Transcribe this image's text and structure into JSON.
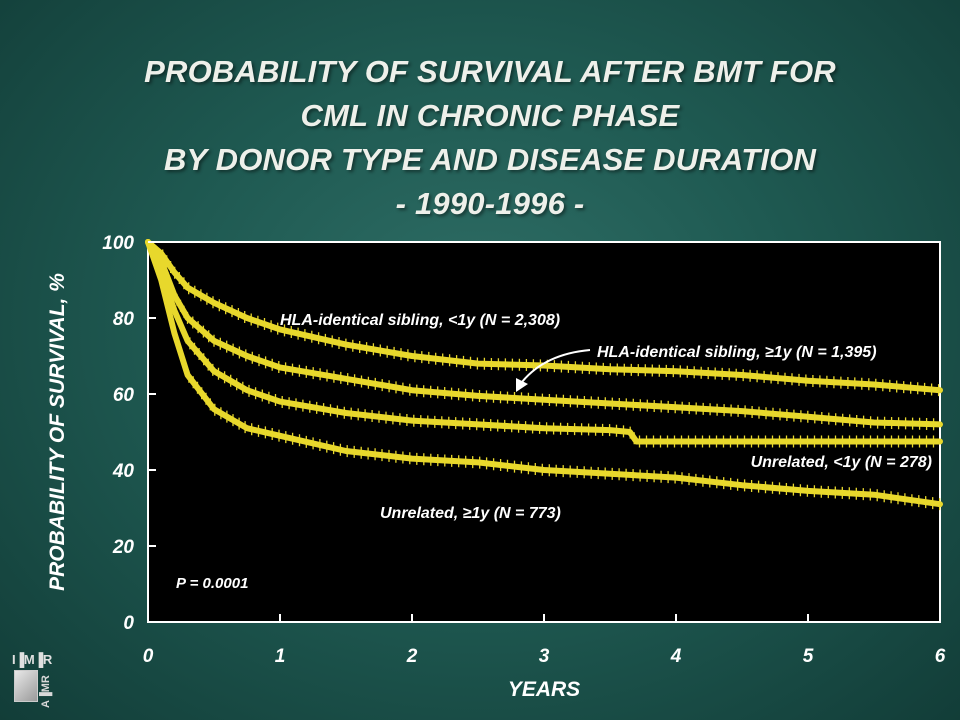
{
  "chart_data": {
    "type": "line",
    "title_lines": [
      "PROBABILITY OF SURVIVAL AFTER BMT FOR",
      "CML IN CHRONIC PHASE",
      "BY DONOR TYPE AND DISEASE DURATION",
      "- 1990-1996 -"
    ],
    "xlabel": "YEARS",
    "ylabel": "PROBABILITY OF SURVIVAL, %",
    "xlim": [
      0,
      6
    ],
    "ylim": [
      0,
      100
    ],
    "x_ticks": [
      "0",
      "1",
      "2",
      "3",
      "4",
      "5",
      "6"
    ],
    "y_ticks": [
      "0",
      "20",
      "40",
      "60",
      "80",
      "100"
    ],
    "grid": false,
    "annotation": "P = 0.0001",
    "series": [
      {
        "name": "HLA-identical sibling, <1y (N = 2,308)",
        "x": [
          0,
          0.1,
          0.2,
          0.3,
          0.5,
          0.75,
          1,
          1.5,
          2,
          2.5,
          3,
          3.5,
          4,
          4.5,
          5,
          5.5,
          6
        ],
        "y": [
          100,
          97,
          92,
          88,
          84,
          80,
          77,
          73,
          70,
          68,
          67.5,
          66.5,
          66,
          65,
          63.5,
          62.5,
          61
        ]
      },
      {
        "name": "HLA-identical sibling, ≥1y (N = 1,395)",
        "x": [
          0,
          0.1,
          0.2,
          0.3,
          0.5,
          0.75,
          1,
          1.5,
          2,
          2.5,
          3,
          3.5,
          4,
          4.5,
          5,
          5.5,
          6
        ],
        "y": [
          100,
          95,
          86,
          80,
          74,
          70,
          67,
          64,
          61,
          59.5,
          58.5,
          57.5,
          56.5,
          55.5,
          54,
          52.5,
          52
        ]
      },
      {
        "name": "Unrelated, <1y (N = 278)",
        "x": [
          0,
          0.1,
          0.2,
          0.3,
          0.5,
          0.75,
          1,
          1.5,
          2,
          2.5,
          3,
          3.5,
          3.65,
          3.7,
          4,
          4.5,
          5,
          5.5,
          6
        ],
        "y": [
          100,
          92,
          82,
          74,
          66,
          61,
          58,
          55,
          53,
          52,
          51,
          50.5,
          50,
          47.5,
          47.5,
          47.5,
          47.5,
          47.5,
          47.5
        ]
      },
      {
        "name": "Unrelated, ≥1y (N = 773)",
        "x": [
          0,
          0.1,
          0.2,
          0.3,
          0.5,
          0.75,
          1,
          1.5,
          2,
          2.5,
          3,
          3.5,
          4,
          4.5,
          5,
          5.5,
          6
        ],
        "y": [
          100,
          90,
          76,
          65,
          56,
          51,
          49,
          45,
          43,
          42,
          40,
          39,
          38,
          36,
          34.5,
          33.5,
          31
        ]
      }
    ],
    "line_color": "#e8d82c",
    "plot_background": "#000000"
  }
}
